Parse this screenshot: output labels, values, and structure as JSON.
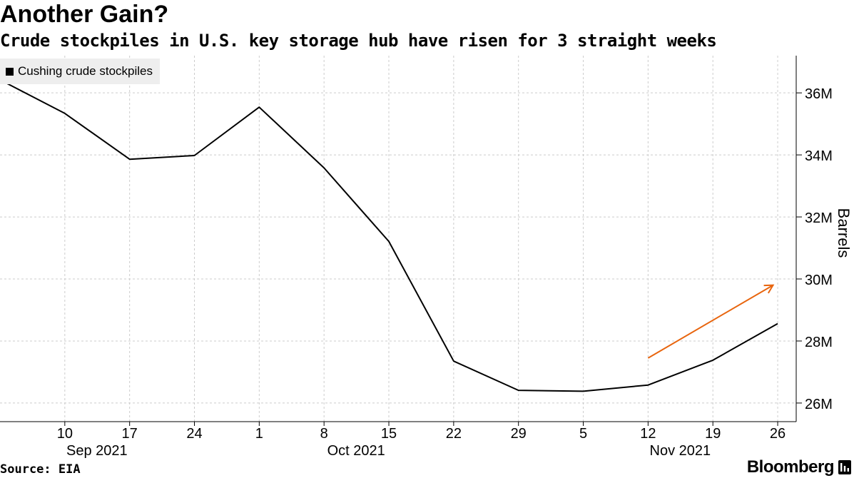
{
  "title": "Another Gain?",
  "subtitle": "Crude stockpiles in U.S. key storage hub have risen for 3 straight weeks",
  "source": "Source: EIA",
  "brand": "Bloomberg",
  "colors": {
    "line": "#000000",
    "arrow": "#e8650e",
    "grid": "#cccccc",
    "legend_bg": "#eeeeee"
  },
  "chart_data": {
    "type": "line",
    "title": "Another Gain?",
    "subtitle": "Crude stockpiles in U.S. key storage hub have risen for 3 straight weeks",
    "ylabel": "Barrels",
    "xlabel": "",
    "ylim": [
      25.4,
      37.2
    ],
    "legend": {
      "entries": [
        "Cushing crude stockpiles"
      ],
      "placement": "top-left"
    },
    "grid": true,
    "y_ticks": [
      {
        "value": 26,
        "label": "26M"
      },
      {
        "value": 28,
        "label": "28M"
      },
      {
        "value": 30,
        "label": "30M"
      },
      {
        "value": 32,
        "label": "32M"
      },
      {
        "value": 34,
        "label": "34M"
      },
      {
        "value": 36,
        "label": "36M"
      }
    ],
    "x_ticks": [
      {
        "day": 10,
        "label": "10",
        "month_label": "Sep 2021"
      },
      {
        "day": 17,
        "label": "17",
        "month_label": ""
      },
      {
        "day": 24,
        "label": "24",
        "month_label": ""
      },
      {
        "day": 31,
        "label": "1",
        "month_label": ""
      },
      {
        "day": 38,
        "label": "8",
        "month_label": "Oct 2021"
      },
      {
        "day": 45,
        "label": "15",
        "month_label": ""
      },
      {
        "day": 52,
        "label": "22",
        "month_label": ""
      },
      {
        "day": 59,
        "label": "29",
        "month_label": ""
      },
      {
        "day": 66,
        "label": "5",
        "month_label": ""
      },
      {
        "day": 73,
        "label": "12",
        "month_label": "Nov 2021"
      },
      {
        "day": 80,
        "label": "19",
        "month_label": ""
      },
      {
        "day": 87,
        "label": "26",
        "month_label": ""
      }
    ],
    "x_range_days": [
      3,
      89
    ],
    "series": [
      {
        "name": "Cushing crude stockpiles",
        "unit": "barrels (millions)",
        "x_days": [
          3,
          10,
          17,
          24,
          31,
          38,
          45,
          52,
          59,
          66,
          73,
          80,
          87
        ],
        "dates": [
          "2021-09-03",
          "2021-09-10",
          "2021-09-17",
          "2021-09-24",
          "2021-10-01",
          "2021-10-08",
          "2021-10-15",
          "2021-10-22",
          "2021-10-29",
          "2021-11-05",
          "2021-11-12",
          "2021-11-19",
          "2021-11-26"
        ],
        "values": [
          36.42,
          35.34,
          33.86,
          33.98,
          35.54,
          33.58,
          31.21,
          27.35,
          26.41,
          26.38,
          26.58,
          27.38,
          28.56
        ]
      }
    ],
    "annotation": {
      "type": "arrow",
      "description": "upward trend arrow",
      "from": {
        "day": 73,
        "value": 27.45
      },
      "to": {
        "day": 86.5,
        "value": 29.8
      }
    }
  }
}
